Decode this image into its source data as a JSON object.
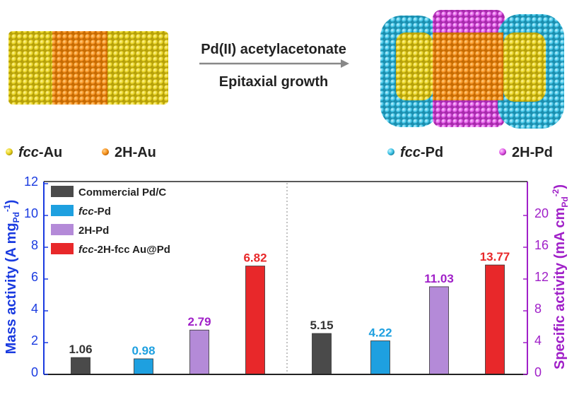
{
  "schematic": {
    "reaction_line1": "Pd(II) acetylacetonate",
    "reaction_line2": "Epitaxial growth",
    "legend_top_left": [
      {
        "label_italic": "fcc",
        "label_rest": "-Au",
        "color": "#e8d21e"
      },
      {
        "label_italic": "",
        "label_rest": "2H-Au",
        "color": "#f7931e"
      }
    ],
    "legend_top_right": [
      {
        "label_italic": "fcc",
        "label_rest": "-Pd",
        "color": "#3cc3e6"
      },
      {
        "label_italic": "",
        "label_rest": "2H-Pd",
        "color": "#e157e6"
      }
    ]
  },
  "chart_data": {
    "type": "bar",
    "panels": [
      {
        "metric": "Mass activity",
        "axis": "left",
        "ylabel": "Mass activity (A mg_Pd^-1)",
        "ylim": [
          0,
          12
        ],
        "ticks": [
          0,
          2,
          4,
          6,
          8,
          10,
          12
        ],
        "values": [
          1.06,
          0.98,
          2.79,
          6.82
        ],
        "labels": [
          "1.06",
          "0.98",
          "2.79",
          "6.82"
        ]
      },
      {
        "metric": "Specific activity",
        "axis": "right",
        "ylabel": "Specific activity (mA cm_Pd^-2)",
        "ylim": [
          0,
          24
        ],
        "ticks": [
          0,
          4,
          8,
          12,
          16,
          20
        ],
        "values": [
          5.15,
          4.22,
          11.03,
          13.77
        ],
        "labels": [
          "5.15",
          "4.22",
          "11.03",
          "13.77"
        ]
      }
    ],
    "series": [
      {
        "name_italic": "",
        "name": "Commercial Pd/C",
        "color": "#4a4a4a"
      },
      {
        "name_italic": "fcc",
        "name": "-Pd",
        "color": "#1ea0e0"
      },
      {
        "name_italic": "",
        "name": "2H-Pd",
        "color": "#b48ad8"
      },
      {
        "name_italic": "fcc",
        "name": "-2H-fcc Au@Pd",
        "color": "#e8282a"
      }
    ],
    "label_colors": [
      "#333333",
      "#1ea0e0",
      "#a020c8",
      "#e8282a"
    ],
    "left_axis_color": "#1a3be0",
    "right_axis_color": "#a020c8",
    "y_left_title": "Mass activity (A mg",
    "y_left_sub": "Pd",
    "y_left_sup": "-1",
    "y_right_title": "Specific activity (mA cm",
    "y_right_sub": "Pd",
    "y_right_sup": "-2",
    "left_tick_labels": [
      "0",
      "2",
      "4",
      "6",
      "8",
      "10",
      "12"
    ],
    "right_tick_labels": [
      "0",
      "4",
      "8",
      "12",
      "16",
      "20"
    ]
  }
}
